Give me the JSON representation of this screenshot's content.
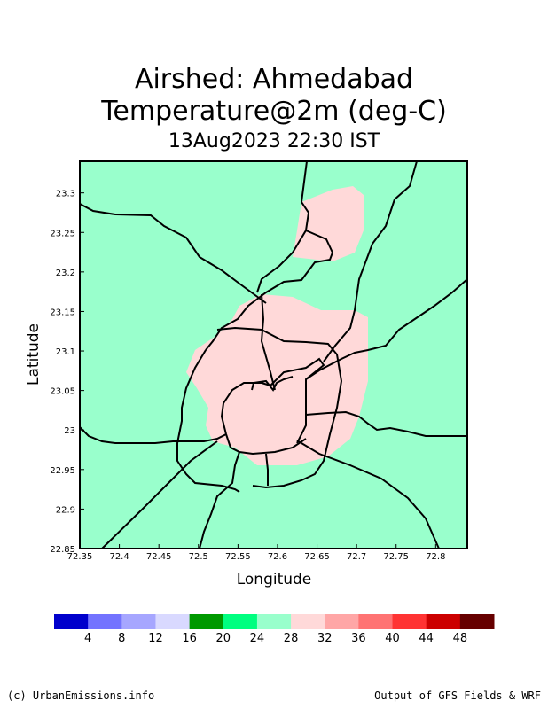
{
  "title": {
    "line1": "Airshed: Ahmedabad",
    "line2": "Temperature@2m (deg-C)",
    "line3": "13Aug2023 22:30 IST"
  },
  "axes": {
    "xlabel": "Longitude",
    "ylabel": "Latitude",
    "xlim": [
      72.35,
      72.84
    ],
    "ylim": [
      22.85,
      23.34
    ],
    "xticks": [
      "72.35",
      "72.4",
      "72.45",
      "72.5",
      "72.55",
      "72.6",
      "72.65",
      "72.7",
      "72.75",
      "72.8"
    ],
    "yticks": [
      "22.85",
      "22.9",
      "22.95",
      "23",
      "23.05",
      "23.1",
      "23.15",
      "23.2",
      "23.25",
      "23.3"
    ]
  },
  "colorbar": {
    "colors": [
      "#0000CC",
      "#7373FF",
      "#A6A6FF",
      "#D9D9FF",
      "#009900",
      "#00FF80",
      "#99FFCC",
      "#FFD9D9",
      "#FFA6A6",
      "#FF7373",
      "#FF3333",
      "#CC0000",
      "#660000"
    ],
    "labels": [
      "4",
      "8",
      "12",
      "16",
      "20",
      "24",
      "28",
      "32",
      "36",
      "40",
      "44",
      "48"
    ]
  },
  "footer": {
    "left": "(c) UrbanEmissions.info",
    "right": "Output of GFS Fields & WRF"
  }
}
